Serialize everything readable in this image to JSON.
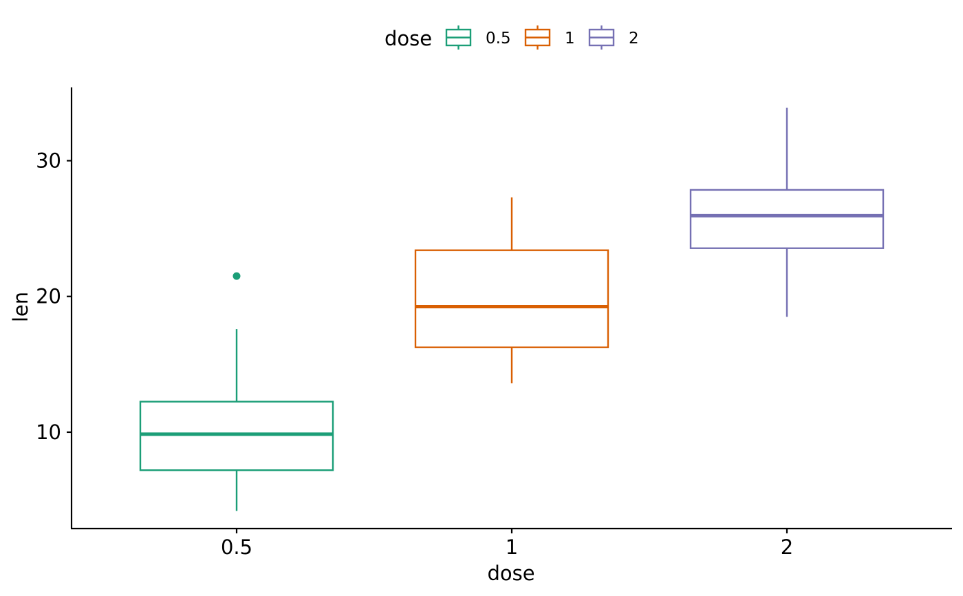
{
  "chart_data": {
    "type": "boxplot",
    "xlabel": "dose",
    "ylabel": "len",
    "categories": [
      "0.5",
      "1",
      "2"
    ],
    "y_ticks": [
      10,
      20,
      30
    ],
    "y_tick_labels": [
      "10",
      "20",
      "30"
    ],
    "ylim": [
      2.9,
      35.4
    ],
    "grid": false,
    "legend": {
      "title": "dose",
      "placement": "top",
      "entries": [
        "0.5",
        "1",
        "2"
      ]
    },
    "colors": [
      "#1B9E77",
      "#D95F02",
      "#7570B3"
    ],
    "series": [
      {
        "category": "0.5",
        "whisker_low": 4.2,
        "q1": 7.2,
        "median": 9.85,
        "q3": 12.25,
        "whisker_high": 17.6,
        "outliers": [
          21.5
        ]
      },
      {
        "category": "1",
        "whisker_low": 13.6,
        "q1": 16.25,
        "median": 19.25,
        "q3": 23.4,
        "whisker_high": 27.3,
        "outliers": []
      },
      {
        "category": "2",
        "whisker_low": 18.5,
        "q1": 23.55,
        "median": 25.95,
        "q3": 27.85,
        "whisker_high": 33.9,
        "outliers": []
      }
    ]
  }
}
